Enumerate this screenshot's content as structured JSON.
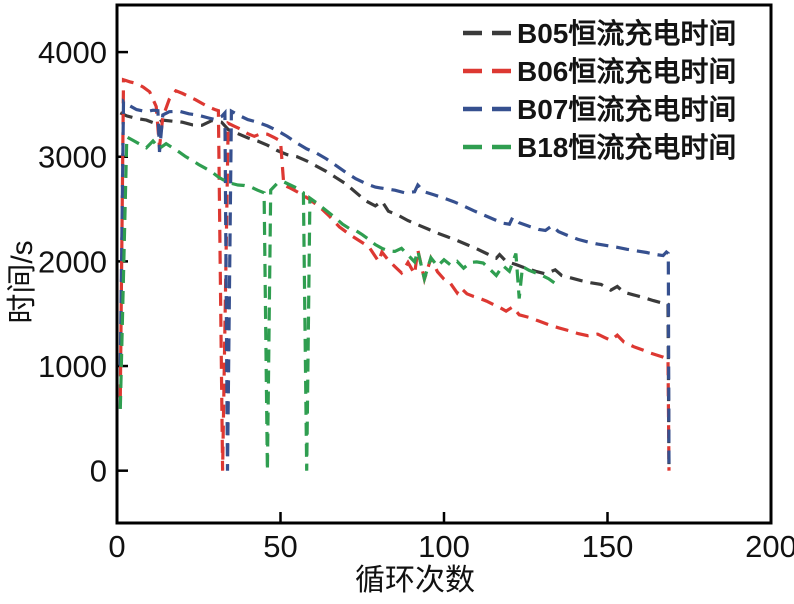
{
  "chart_data": {
    "type": "line",
    "title": "",
    "xlabel": "循环次数",
    "ylabel": "时间/s",
    "xlim": [
      0,
      200
    ],
    "ylim": [
      -500,
      4450
    ],
    "xticks": [
      0,
      50,
      100,
      150,
      200
    ],
    "yticks": [
      0,
      1000,
      2000,
      3000,
      4000
    ],
    "grid": false,
    "legend_position": "top-right",
    "line_style": "dashed",
    "axis_color": "#000000",
    "series": [
      {
        "battery": "B05",
        "label": "B05恒流充电时间",
        "color": "#3a3a3a",
        "points": [
          [
            1,
            3420
          ],
          [
            3,
            3390
          ],
          [
            6,
            3365
          ],
          [
            9,
            3350
          ],
          [
            12,
            3315
          ],
          [
            14,
            3350
          ],
          [
            17,
            3340
          ],
          [
            20,
            3330
          ],
          [
            23,
            3305
          ],
          [
            26,
            3300
          ],
          [
            29,
            3345
          ],
          [
            32,
            3330
          ],
          [
            34,
            3260
          ],
          [
            37,
            3220
          ],
          [
            40,
            3180
          ],
          [
            43,
            3150
          ],
          [
            46,
            3110
          ],
          [
            49,
            3060
          ],
          [
            52,
            3020
          ],
          [
            55,
            3000
          ],
          [
            58,
            2960
          ],
          [
            61,
            2910
          ],
          [
            64,
            2860
          ],
          [
            67,
            2800
          ],
          [
            70,
            2740
          ],
          [
            73,
            2660
          ],
          [
            76,
            2580
          ],
          [
            79,
            2530
          ],
          [
            81,
            2575
          ],
          [
            83,
            2480
          ],
          [
            86,
            2440
          ],
          [
            89,
            2390
          ],
          [
            92,
            2350
          ],
          [
            95,
            2310
          ],
          [
            98,
            2270
          ],
          [
            101,
            2235
          ],
          [
            104,
            2200
          ],
          [
            107,
            2160
          ],
          [
            110,
            2120
          ],
          [
            113,
            2075
          ],
          [
            116,
            2030
          ],
          [
            117,
            2065
          ],
          [
            119,
            2000
          ],
          [
            122,
            1970
          ],
          [
            125,
            1935
          ],
          [
            128,
            1905
          ],
          [
            131,
            1880
          ],
          [
            134,
            1920
          ],
          [
            136,
            1865
          ],
          [
            139,
            1840
          ],
          [
            142,
            1815
          ],
          [
            145,
            1795
          ],
          [
            148,
            1780
          ],
          [
            151,
            1725
          ],
          [
            153,
            1760
          ],
          [
            155,
            1705
          ],
          [
            158,
            1680
          ],
          [
            161,
            1655
          ],
          [
            164,
            1625
          ],
          [
            167,
            1600
          ],
          [
            168.5,
            1590
          ],
          [
            168.8,
            0
          ]
        ]
      },
      {
        "battery": "B06",
        "label": "B06恒流充电时间",
        "color": "#dd3832",
        "points": [
          [
            1,
            700
          ],
          [
            2,
            3735
          ],
          [
            4,
            3715
          ],
          [
            6,
            3700
          ],
          [
            8,
            3665
          ],
          [
            10,
            3620
          ],
          [
            12,
            3480
          ],
          [
            13,
            3090
          ],
          [
            14,
            3380
          ],
          [
            16,
            3550
          ],
          [
            18,
            3630
          ],
          [
            20,
            3605
          ],
          [
            22,
            3575
          ],
          [
            24,
            3545
          ],
          [
            26,
            3510
          ],
          [
            28,
            3475
          ],
          [
            30,
            3450
          ],
          [
            31,
            3440
          ],
          [
            32.3,
            0
          ],
          [
            34,
            3320
          ],
          [
            36,
            3290
          ],
          [
            38,
            3260
          ],
          [
            40,
            3220
          ],
          [
            42,
            3195
          ],
          [
            44,
            3220
          ],
          [
            46,
            3215
          ],
          [
            48,
            3185
          ],
          [
            50,
            3150
          ],
          [
            51,
            2730
          ],
          [
            53,
            2700
          ],
          [
            56,
            2650
          ],
          [
            59,
            2590
          ],
          [
            62,
            2520
          ],
          [
            65,
            2430
          ],
          [
            68,
            2330
          ],
          [
            71,
            2260
          ],
          [
            74,
            2200
          ],
          [
            77,
            2140
          ],
          [
            80,
            2000
          ],
          [
            81,
            2090
          ],
          [
            83,
            2010
          ],
          [
            85,
            1950
          ],
          [
            87,
            1890
          ],
          [
            89,
            1990
          ],
          [
            91,
            1880
          ],
          [
            92,
            2110
          ],
          [
            94,
            1830
          ],
          [
            96,
            2030
          ],
          [
            98,
            1900
          ],
          [
            100,
            1830
          ],
          [
            102,
            1790
          ],
          [
            104,
            1700
          ],
          [
            105,
            1750
          ],
          [
            107,
            1690
          ],
          [
            109,
            1665
          ],
          [
            111,
            1645
          ],
          [
            113,
            1620
          ],
          [
            115,
            1590
          ],
          [
            117,
            1560
          ],
          [
            119,
            1525
          ],
          [
            121,
            1565
          ],
          [
            123,
            1490
          ],
          [
            126,
            1465
          ],
          [
            129,
            1430
          ],
          [
            132,
            1395
          ],
          [
            135,
            1365
          ],
          [
            138,
            1340
          ],
          [
            141,
            1310
          ],
          [
            144,
            1290
          ],
          [
            147,
            1305
          ],
          [
            149,
            1275
          ],
          [
            151,
            1245
          ],
          [
            153,
            1295
          ],
          [
            155,
            1230
          ],
          [
            158,
            1185
          ],
          [
            161,
            1150
          ],
          [
            163,
            1125
          ],
          [
            165,
            1105
          ],
          [
            167,
            1085
          ],
          [
            168.5,
            1065
          ],
          [
            168.8,
            0
          ]
        ]
      },
      {
        "battery": "B07",
        "label": "B07恒流充电时间",
        "color": "#36508f",
        "points": [
          [
            1,
            1000
          ],
          [
            2,
            3530
          ],
          [
            4,
            3485
          ],
          [
            6,
            3450
          ],
          [
            9,
            3430
          ],
          [
            11,
            3445
          ],
          [
            12.5,
            3440
          ],
          [
            13,
            3045
          ],
          [
            14,
            3400
          ],
          [
            16,
            3430
          ],
          [
            19,
            3435
          ],
          [
            22,
            3410
          ],
          [
            25,
            3395
          ],
          [
            28,
            3370
          ],
          [
            30,
            3355
          ],
          [
            32,
            3385
          ],
          [
            33,
            3420
          ],
          [
            33.8,
            0
          ],
          [
            35,
            3435
          ],
          [
            37,
            3400
          ],
          [
            40,
            3355
          ],
          [
            43,
            3330
          ],
          [
            46,
            3295
          ],
          [
            49,
            3250
          ],
          [
            52,
            3195
          ],
          [
            55,
            3130
          ],
          [
            58,
            3075
          ],
          [
            61,
            3035
          ],
          [
            64,
            2980
          ],
          [
            67,
            2915
          ],
          [
            70,
            2850
          ],
          [
            73,
            2790
          ],
          [
            76,
            2745
          ],
          [
            79,
            2710
          ],
          [
            82,
            2695
          ],
          [
            85,
            2680
          ],
          [
            88,
            2655
          ],
          [
            91,
            2665
          ],
          [
            92,
            2730
          ],
          [
            94,
            2665
          ],
          [
            97,
            2635
          ],
          [
            100,
            2605
          ],
          [
            103,
            2570
          ],
          [
            106,
            2530
          ],
          [
            109,
            2485
          ],
          [
            112,
            2445
          ],
          [
            115,
            2405
          ],
          [
            118,
            2365
          ],
          [
            120,
            2355
          ],
          [
            121,
            2420
          ],
          [
            123,
            2370
          ],
          [
            126,
            2335
          ],
          [
            129,
            2305
          ],
          [
            131,
            2295
          ],
          [
            133,
            2340
          ],
          [
            135,
            2285
          ],
          [
            138,
            2245
          ],
          [
            141,
            2210
          ],
          [
            144,
            2185
          ],
          [
            147,
            2165
          ],
          [
            150,
            2150
          ],
          [
            153,
            2135
          ],
          [
            156,
            2115
          ],
          [
            159,
            2100
          ],
          [
            162,
            2085
          ],
          [
            165,
            2065
          ],
          [
            167,
            2055
          ],
          [
            168,
            2090
          ],
          [
            168.6,
            2075
          ],
          [
            168.8,
            0
          ]
        ]
      },
      {
        "battery": "B18",
        "label": "B18恒流充电时间",
        "color": "#2f9e50",
        "points": [
          [
            1,
            590
          ],
          [
            3,
            3190
          ],
          [
            5,
            3155
          ],
          [
            7,
            3120
          ],
          [
            9,
            3085
          ],
          [
            11,
            3150
          ],
          [
            13,
            3080
          ],
          [
            15,
            3125
          ],
          [
            17,
            3085
          ],
          [
            19,
            3045
          ],
          [
            21,
            3000
          ],
          [
            23,
            2965
          ],
          [
            25,
            2925
          ],
          [
            27,
            2890
          ],
          [
            29,
            2855
          ],
          [
            31,
            2805
          ],
          [
            33,
            2770
          ],
          [
            35,
            2745
          ],
          [
            37,
            2730
          ],
          [
            39,
            2725
          ],
          [
            41,
            2710
          ],
          [
            43,
            2680
          ],
          [
            45,
            2655
          ],
          [
            46,
            0
          ],
          [
            47,
            2680
          ],
          [
            49,
            2745
          ],
          [
            51,
            2760
          ],
          [
            53,
            2730
          ],
          [
            55,
            2700
          ],
          [
            57,
            2655
          ],
          [
            58,
            0
          ],
          [
            59,
            2605
          ],
          [
            61,
            2560
          ],
          [
            63,
            2510
          ],
          [
            65,
            2460
          ],
          [
            67,
            2410
          ],
          [
            69,
            2355
          ],
          [
            71,
            2315
          ],
          [
            73,
            2295
          ],
          [
            75,
            2255
          ],
          [
            77,
            2210
          ],
          [
            79,
            2160
          ],
          [
            81,
            2125
          ],
          [
            83,
            2100
          ],
          [
            85,
            2095
          ],
          [
            87,
            2125
          ],
          [
            89,
            2060
          ],
          [
            91,
            1995
          ],
          [
            92,
            2100
          ],
          [
            94,
            1835
          ],
          [
            96,
            2035
          ],
          [
            98,
            1955
          ],
          [
            100,
            2015
          ],
          [
            102,
            1965
          ],
          [
            104,
            2000
          ],
          [
            106,
            1935
          ],
          [
            108,
            1990
          ],
          [
            110,
            1995
          ],
          [
            112,
            1985
          ],
          [
            114,
            1925
          ],
          [
            116,
            1865
          ],
          [
            118,
            1960
          ],
          [
            120,
            1905
          ],
          [
            122,
            2075
          ],
          [
            123,
            1645
          ],
          [
            124,
            1950
          ],
          [
            126,
            1915
          ],
          [
            128,
            1890
          ],
          [
            130,
            1865
          ],
          [
            132,
            1835
          ],
          [
            134,
            1790
          ]
        ]
      }
    ]
  }
}
